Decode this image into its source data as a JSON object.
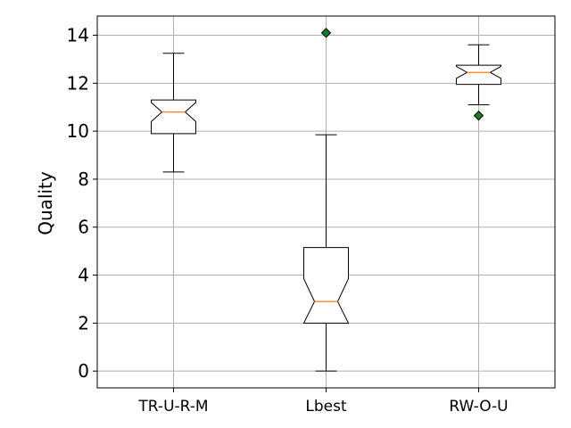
{
  "chart_data": {
    "type": "boxplot",
    "ylabel": "Quality",
    "ylim": [
      -0.7,
      14.8
    ],
    "yticks": [
      0,
      2,
      4,
      6,
      8,
      10,
      12,
      14
    ],
    "grid": true,
    "notched": true,
    "categories": [
      "TR-U-R-M",
      "Lbest",
      "RW-O-U"
    ],
    "boxes": [
      {
        "category": "TR-U-R-M",
        "whisker_low": 8.3,
        "q1": 9.9,
        "notch_low": 10.4,
        "median": 10.8,
        "notch_high": 11.2,
        "q3": 11.3,
        "whisker_high": 13.25,
        "outliers": []
      },
      {
        "category": "Lbest",
        "whisker_low": 0.0,
        "q1": 2.0,
        "notch_low": 2.0,
        "median": 2.9,
        "notch_high": 3.85,
        "q3": 5.15,
        "whisker_high": 9.85,
        "outliers": [
          14.1
        ]
      },
      {
        "category": "RW-O-U",
        "whisker_low": 11.1,
        "q1": 11.95,
        "notch_low": 12.2,
        "median": 12.45,
        "notch_high": 12.7,
        "q3": 12.75,
        "whisker_high": 13.6,
        "outliers": [
          10.65
        ]
      }
    ],
    "colors": {
      "box": "#000000",
      "median": "#ff7f0e",
      "outlier": "#1a7f1a",
      "grid": "#b0b0b0"
    }
  }
}
